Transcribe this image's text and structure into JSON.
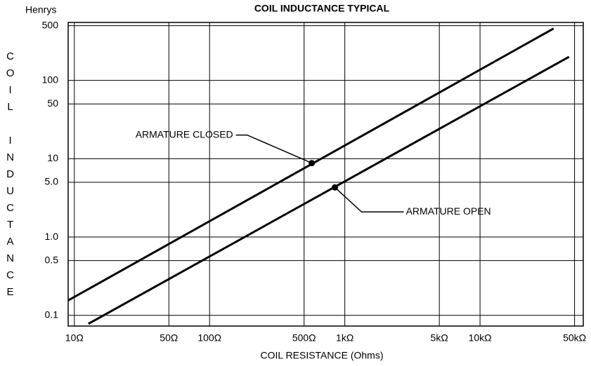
{
  "chart_data": {
    "type": "line",
    "title": "COIL INDUCTANCE TYPICAL",
    "y_unit": "Henrys",
    "ylabel": "COIL INDUCTANCE",
    "xlabel": "COIL RESISTANCE  (Ohms)",
    "xscale": "log",
    "yscale": "log",
    "grid": true,
    "xlim": [
      9,
      58000
    ],
    "ylim": [
      0.073,
      550
    ],
    "xticks": [
      {
        "value": 10,
        "label": "10Ω"
      },
      {
        "value": 50,
        "label": "50Ω"
      },
      {
        "value": 100,
        "label": "100Ω"
      },
      {
        "value": 500,
        "label": "500Ω"
      },
      {
        "value": 1000,
        "label": "1kΩ"
      },
      {
        "value": 5000,
        "label": "5kΩ"
      },
      {
        "value": 10000,
        "label": "10kΩ"
      },
      {
        "value": 50000,
        "label": "50kΩ"
      }
    ],
    "yticks": [
      500,
      100,
      50,
      10,
      {
        "value": 5,
        "label": "5.0"
      },
      {
        "value": 1,
        "label": "1.0"
      },
      0.5,
      0.1
    ],
    "series": [
      {
        "name": "ARMATURE CLOSED",
        "color": "#000000",
        "x": [
          9,
          35000
        ],
        "values": [
          0.155,
          460
        ]
      },
      {
        "name": "ARMATURE OPEN",
        "color": "#000000",
        "x": [
          12.7,
          45500
        ],
        "values": [
          0.078,
          200
        ]
      }
    ],
    "annotations": [
      {
        "text": "ARMATURE CLOSED",
        "x": 570,
        "y": 8.8
      },
      {
        "text": "ARMATURE OPEN",
        "x": 845,
        "y": 4.3
      }
    ]
  }
}
